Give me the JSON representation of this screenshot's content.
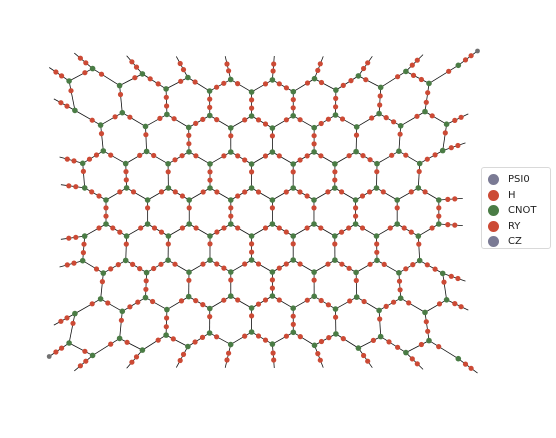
{
  "diagram": {
    "type": "quantum-circuit-graph",
    "description": "Hexagonal lattice of quantum gate nodes"
  },
  "legend": {
    "items": [
      {
        "label": "PSI0",
        "color": "#7a7a94"
      },
      {
        "label": "H",
        "color": "#cc4a35"
      },
      {
        "label": "CNOT",
        "color": "#4a7c45"
      },
      {
        "label": "RY",
        "color": "#cc4a35"
      },
      {
        "label": "CZ",
        "color": "#7a7a94"
      }
    ]
  },
  "colors": {
    "edge": "#111111",
    "psi0_outer": "#707070",
    "cz": "#7a7a94",
    "cnot": "#4a7c45",
    "h_ry": "#cc4a35"
  }
}
